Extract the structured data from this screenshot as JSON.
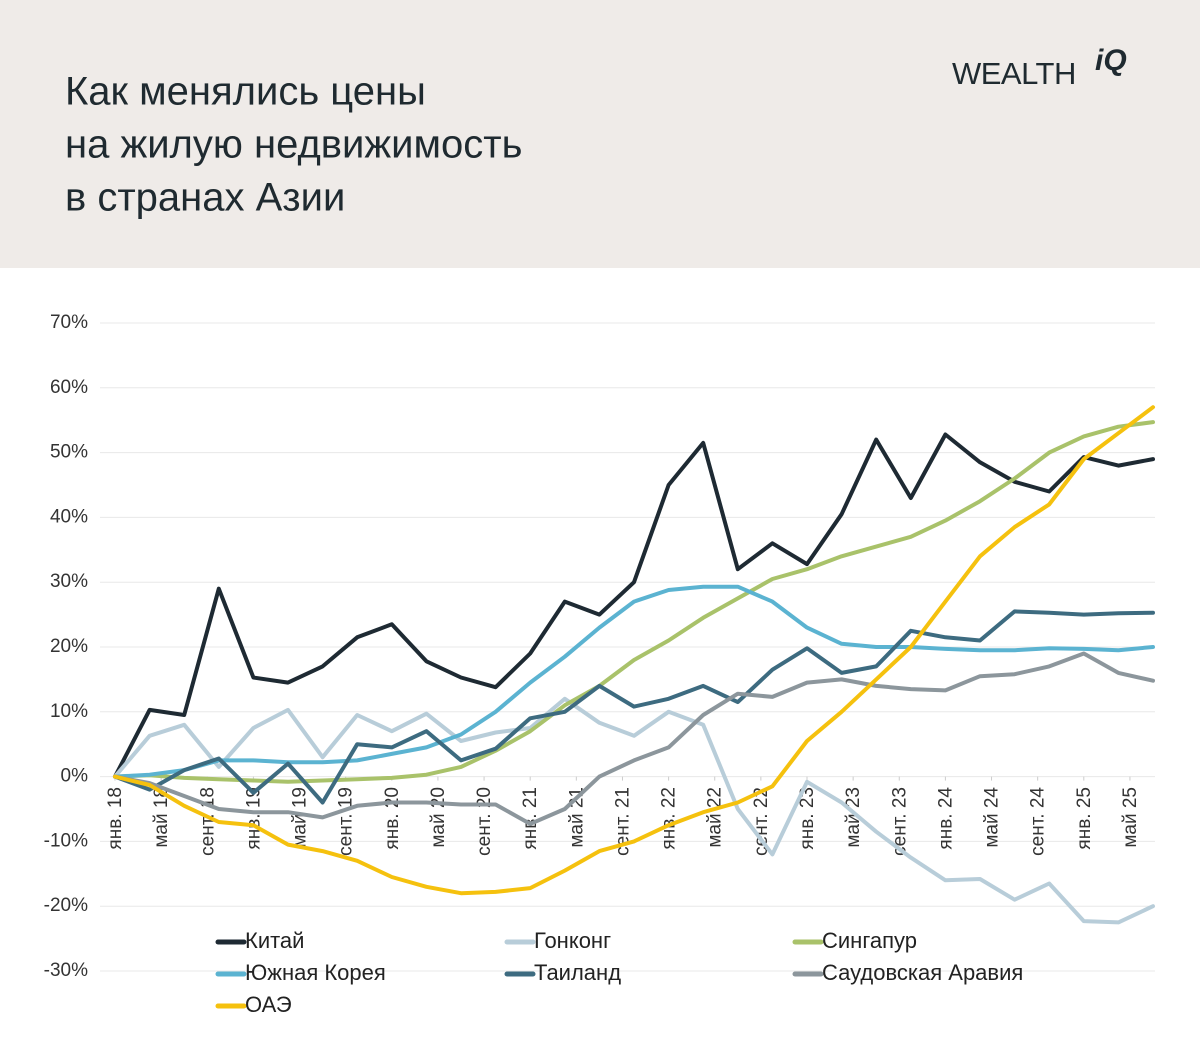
{
  "header": {
    "logo": "WEALTH",
    "logo_suffix": "iQ"
  },
  "chart_data": {
    "type": "line",
    "title": [
      "Как менялись цены",
      "на жилую недвижимость",
      "в странах Азии"
    ],
    "x": [
      0,
      3,
      6,
      9,
      12,
      15,
      18,
      21,
      24,
      27,
      30,
      33,
      36,
      39,
      42,
      45,
      48,
      51,
      54,
      57,
      60,
      63,
      66,
      69,
      72,
      75,
      78,
      81,
      84,
      87,
      90
    ],
    "xlim": [
      0,
      90
    ],
    "xticks": [
      {
        "value": 0,
        "label": "янв. 18"
      },
      {
        "value": 4,
        "label": "май 18"
      },
      {
        "value": 8,
        "label": "сент. 18"
      },
      {
        "value": 12,
        "label": "янв. 19"
      },
      {
        "value": 16,
        "label": "май 19"
      },
      {
        "value": 20,
        "label": "сент. 19"
      },
      {
        "value": 24,
        "label": "янв. 20"
      },
      {
        "value": 28,
        "label": "май 20"
      },
      {
        "value": 32,
        "label": "сент. 20"
      },
      {
        "value": 36,
        "label": "янв. 21"
      },
      {
        "value": 40,
        "label": "май 21"
      },
      {
        "value": 44,
        "label": "сент. 21"
      },
      {
        "value": 48,
        "label": "янв. 22"
      },
      {
        "value": 52,
        "label": "май 22"
      },
      {
        "value": 56,
        "label": "сент. 22"
      },
      {
        "value": 60,
        "label": "янв. 23"
      },
      {
        "value": 64,
        "label": "май 23"
      },
      {
        "value": 68,
        "label": "сент. 23"
      },
      {
        "value": 72,
        "label": "янв. 24"
      },
      {
        "value": 76,
        "label": "май 24"
      },
      {
        "value": 80,
        "label": "сент. 24"
      },
      {
        "value": 84,
        "label": "янв. 25"
      },
      {
        "value": 88,
        "label": "май 25"
      }
    ],
    "ylim": [
      -30,
      70
    ],
    "yticks": [
      {
        "value": -30,
        "label": "-30%"
      },
      {
        "value": -20,
        "label": "-20%"
      },
      {
        "value": -10,
        "label": "-10%"
      },
      {
        "value": 0,
        "label": "0%"
      },
      {
        "value": 10,
        "label": "10%"
      },
      {
        "value": 20,
        "label": "20%"
      },
      {
        "value": 30,
        "label": "30%"
      },
      {
        "value": 40,
        "label": "40%"
      },
      {
        "value": 50,
        "label": "50%"
      },
      {
        "value": 60,
        "label": "60%"
      },
      {
        "value": 70,
        "label": "70%"
      }
    ],
    "grid": true,
    "series": [
      {
        "name": "Китай",
        "color": "#1e2a33",
        "values": [
          0,
          10.3,
          9.5,
          29,
          15.3,
          14.5,
          17,
          21.5,
          23.5,
          17.8,
          15.3,
          13.8,
          19,
          27,
          25,
          30,
          45,
          51.5,
          32,
          36,
          32.8,
          40.5,
          52,
          43,
          52.8,
          48.5,
          45.5,
          44,
          49.3,
          48,
          49
        ]
      },
      {
        "name": "Гонконг",
        "color": "#b8cdd9",
        "values": [
          0,
          6.3,
          8,
          1.5,
          7.5,
          10.3,
          3,
          9.5,
          7,
          9.7,
          5.5,
          6.8,
          7.5,
          12,
          8.3,
          6.3,
          10,
          8,
          -5,
          -12,
          -0.8,
          -4,
          -8.5,
          -12.5,
          -16,
          -15.8,
          -19,
          -16.5,
          -22.3,
          -22.5,
          -20
        ]
      },
      {
        "name": "Сингапур",
        "color": "#a9c26a",
        "values": [
          0,
          0.2,
          -0.2,
          -0.4,
          -0.6,
          -0.8,
          -0.6,
          -0.4,
          -0.2,
          0.3,
          1.5,
          4,
          7,
          11,
          14,
          18,
          21,
          24.5,
          27.5,
          30.5,
          32,
          34,
          35.5,
          37,
          39.5,
          42.5,
          46,
          50,
          52.5,
          54,
          54.7
        ]
      },
      {
        "name": "Южная Корея",
        "color": "#5bb3d1",
        "values": [
          0,
          0.3,
          1,
          2.5,
          2.5,
          2.2,
          2.2,
          2.5,
          3.5,
          4.5,
          6.5,
          10,
          14.5,
          18.5,
          23,
          27,
          28.8,
          29.3,
          29.3,
          27,
          23,
          20.5,
          20,
          20,
          19.7,
          19.5,
          19.5,
          19.8,
          19.7,
          19.5,
          20
        ]
      },
      {
        "name": "Таиланд",
        "color": "#3d6b80",
        "values": [
          0,
          -2,
          1,
          2.8,
          -2.5,
          2,
          -4,
          5,
          4.5,
          7,
          2.5,
          4.3,
          9,
          10,
          14,
          10.8,
          12,
          14,
          11.5,
          16.5,
          19.8,
          16,
          17,
          22.5,
          21.5,
          21,
          25.5,
          25.3,
          25,
          25.2,
          25.3
        ]
      },
      {
        "name": "Саудовская Аравия",
        "color": "#8c969c",
        "values": [
          0,
          -1,
          -3,
          -5,
          -5.5,
          -5.5,
          -6.3,
          -4.5,
          -4,
          -4,
          -4.3,
          -4.3,
          -7.3,
          -5,
          0,
          2.5,
          4.5,
          9.5,
          12.8,
          12.3,
          14.5,
          15,
          14,
          13.5,
          13.3,
          15.5,
          15.8,
          17,
          19,
          16,
          14.8
        ]
      },
      {
        "name": "ОАЭ",
        "color": "#f5c10e",
        "values": [
          0,
          -1.3,
          -4.5,
          -7,
          -7.5,
          -10.5,
          -11.5,
          -13,
          -15.5,
          -17,
          -18,
          -17.8,
          -17.2,
          -14.5,
          -11.5,
          -10,
          -7.5,
          -5.5,
          -4,
          -1.5,
          5.5,
          10,
          15,
          20,
          27,
          34,
          38.5,
          42,
          49,
          53,
          57
        ]
      }
    ]
  }
}
